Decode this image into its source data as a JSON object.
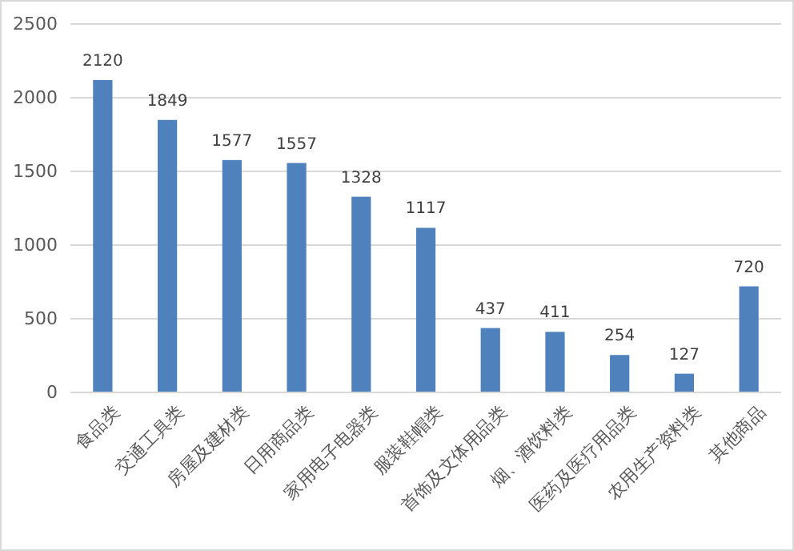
{
  "chart_data": {
    "type": "bar",
    "categories": [
      "食品类",
      "交通工具类",
      "房屋及建材类",
      "日用商品类",
      "家用电子电器类",
      "服装鞋帽类",
      "首饰及文体用品类",
      "烟、酒饮料类",
      "医药及医疗用品类",
      "农用生产资料类",
      "其他商品"
    ],
    "values": [
      2120,
      1849,
      1577,
      1557,
      1328,
      1117,
      437,
      411,
      254,
      127,
      720
    ],
    "color": "#4f81bd",
    "ylim": [
      0,
      2500
    ],
    "yticks": [
      0,
      500,
      1000,
      1500,
      2000,
      2500
    ],
    "grid": "y",
    "data_labels": true
  }
}
